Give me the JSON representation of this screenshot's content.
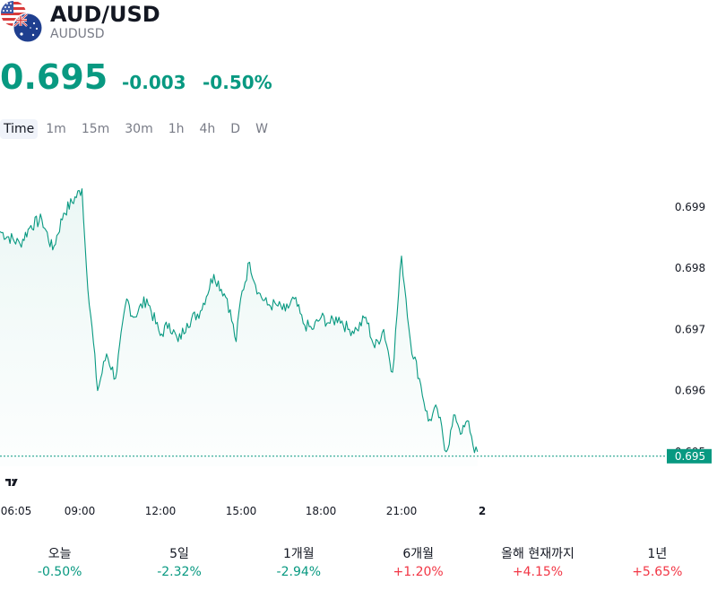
{
  "header": {
    "title": "AUD/USD",
    "subtitle": "AUDUSD",
    "flag_icons": [
      "us-flag-icon",
      "australia-flag-icon"
    ]
  },
  "quote": {
    "price": "0.695",
    "change": "-0.003",
    "change_percent": "-0.50%"
  },
  "timeframes": [
    "Time",
    "1m",
    "15m",
    "30m",
    "1h",
    "4h",
    "D",
    "W"
  ],
  "performance": [
    {
      "label": "오늘",
      "value": "-0.50%",
      "direction": "down"
    },
    {
      "label": "5일",
      "value": "-2.32%",
      "direction": "down"
    },
    {
      "label": "1개월",
      "value": "-2.94%",
      "direction": "down"
    },
    {
      "label": "6개월",
      "value": "+1.20%",
      "direction": "up"
    },
    {
      "label": "올해 현재까지",
      "value": "+4.15%",
      "direction": "up"
    },
    {
      "label": "1년",
      "value": "+5.65%",
      "direction": "up"
    }
  ],
  "colors": {
    "up": "#f23645",
    "down": "#089981",
    "line": "#089981",
    "text": "#131722",
    "muted": "#787b86"
  },
  "chart_data": {
    "type": "area",
    "x_ticks": [
      "06:05",
      "09:00",
      "12:00",
      "15:00",
      "18:00",
      "21:00",
      "2"
    ],
    "y_ticks": [
      "0.699",
      "0.698",
      "0.697",
      "0.696",
      "0.695"
    ],
    "last_price_label": "0.695",
    "ylim": [
      0.6948,
      0.6994
    ],
    "x": [
      "06:05",
      "07:00",
      "07:30",
      "08:00",
      "08:30",
      "09:00",
      "09:05",
      "09:15",
      "09:40",
      "10:00",
      "10:20",
      "10:45",
      "11:00",
      "11:30",
      "12:00",
      "12:20",
      "12:40",
      "13:00",
      "13:30",
      "14:00",
      "14:30",
      "14:50",
      "15:00",
      "15:20",
      "15:40",
      "16:00",
      "16:20",
      "16:40",
      "17:00",
      "17:20",
      "17:40",
      "18:00",
      "18:20",
      "18:40",
      "19:00",
      "19:20",
      "19:40",
      "20:00",
      "20:20",
      "20:40",
      "21:00",
      "21:10",
      "21:20",
      "21:40",
      "22:00",
      "22:20",
      "22:40",
      "23:00",
      "23:15",
      "23:30",
      "23:40",
      "23:50"
    ],
    "values": [
      0.6986,
      0.6984,
      0.6987,
      0.6988,
      0.6983,
      0.6989,
      0.6993,
      0.698,
      0.696,
      0.6966,
      0.6962,
      0.6975,
      0.6972,
      0.6975,
      0.6969,
      0.6971,
      0.6968,
      0.6971,
      0.6973,
      0.6979,
      0.6975,
      0.6968,
      0.6975,
      0.6981,
      0.6976,
      0.6974,
      0.6974,
      0.6973,
      0.6975,
      0.6971,
      0.697,
      0.6972,
      0.6971,
      0.6972,
      0.697,
      0.697,
      0.6972,
      0.6967,
      0.697,
      0.6963,
      0.6982,
      0.6975,
      0.6968,
      0.6962,
      0.6955,
      0.6957,
      0.695,
      0.6956,
      0.6953,
      0.6955,
      0.6951,
      0.695
    ]
  }
}
